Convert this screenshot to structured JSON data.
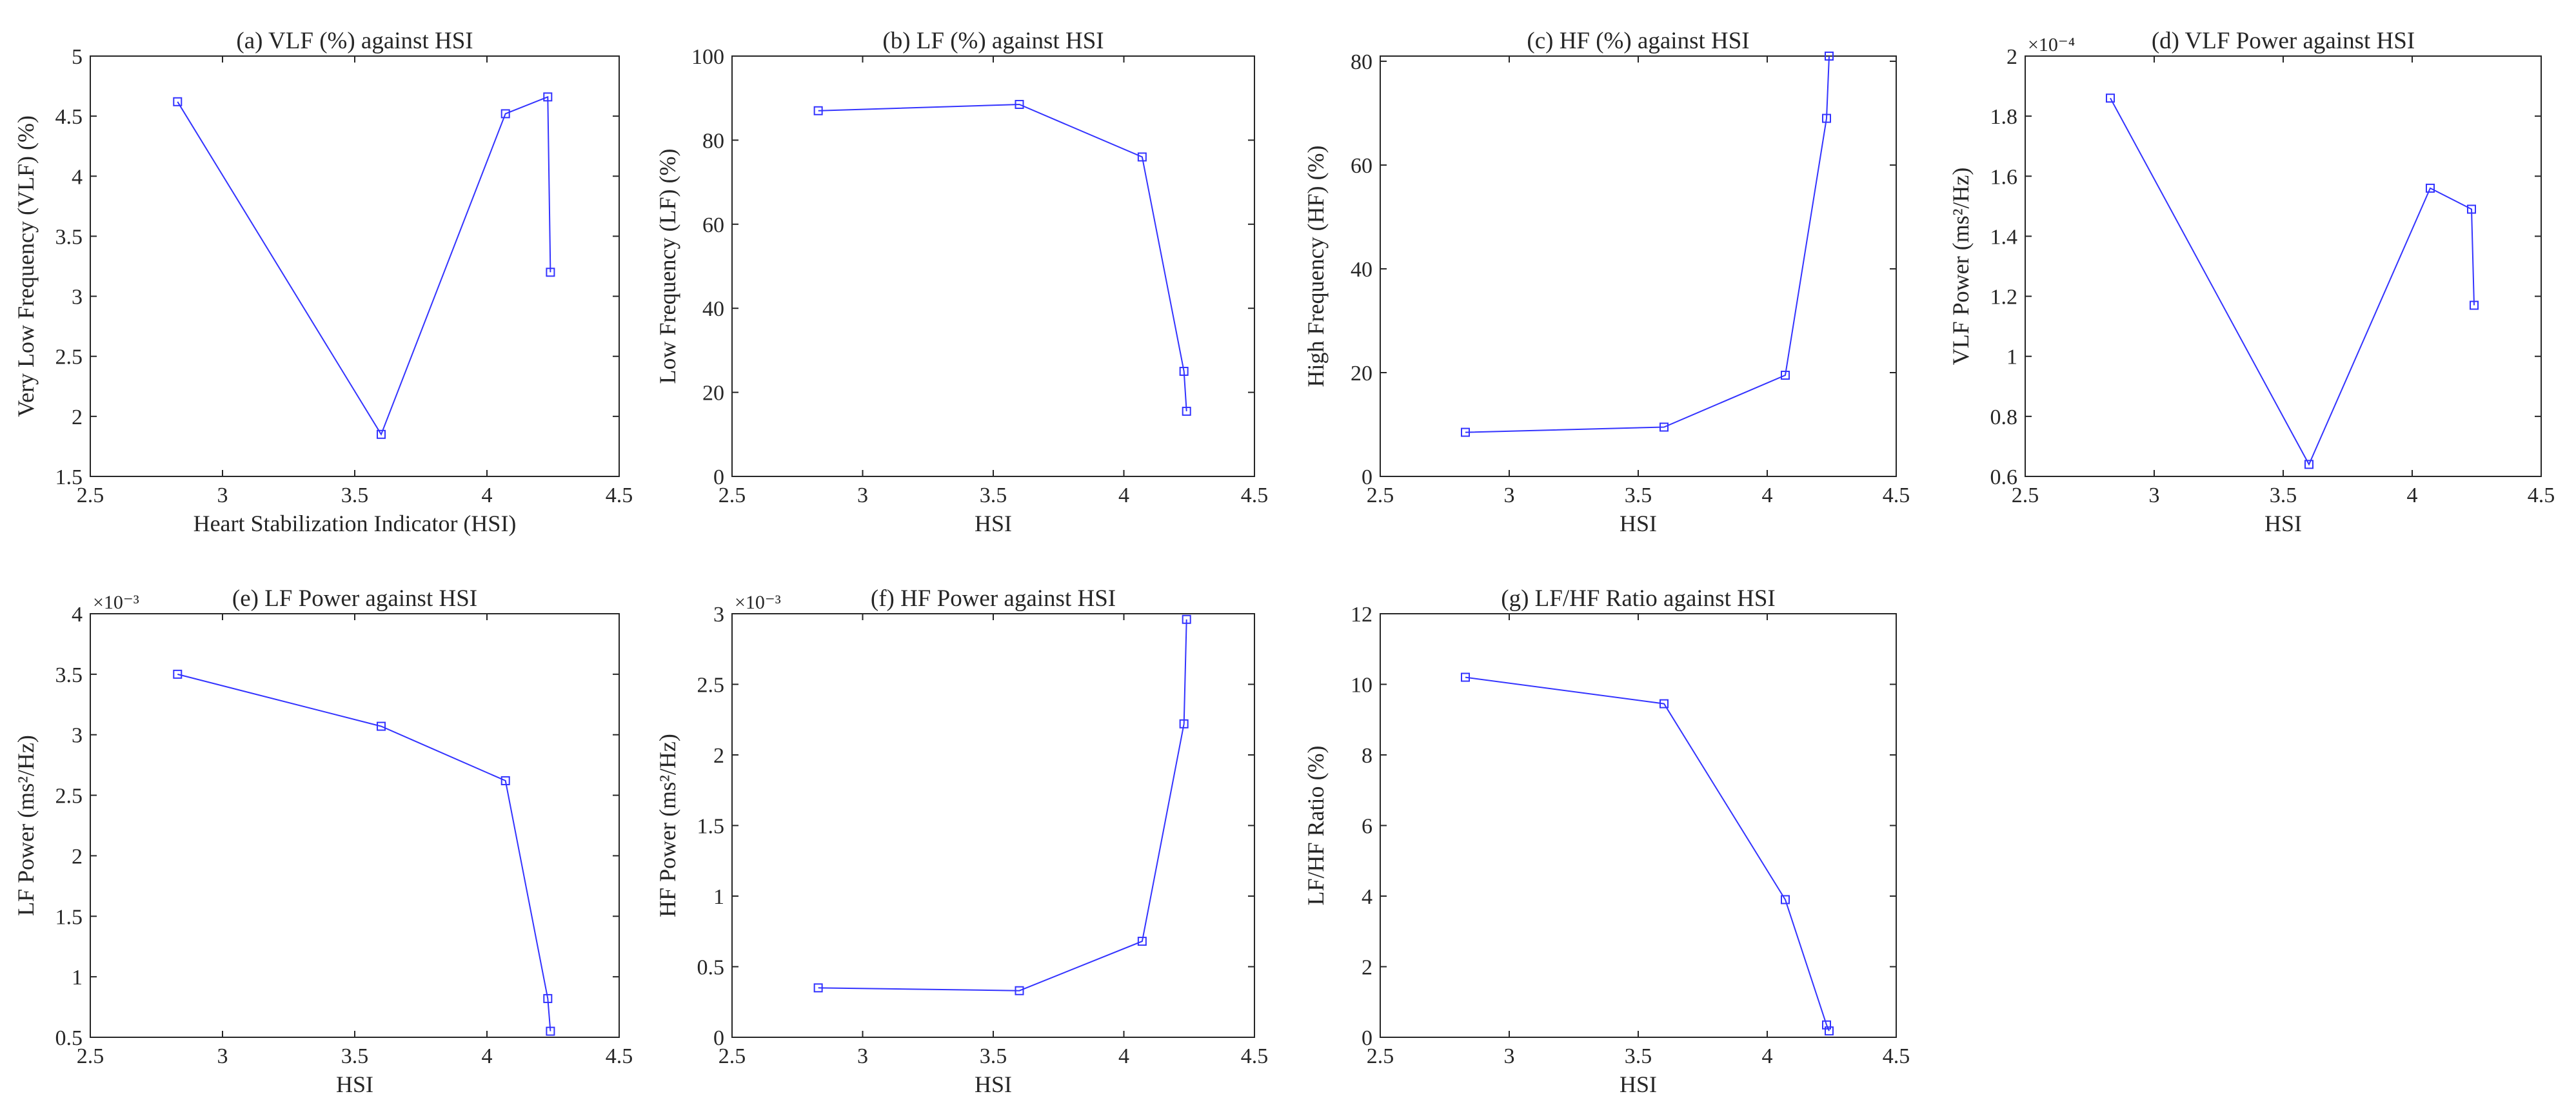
{
  "figure_panels": 7,
  "line_color": "#3333ff",
  "chart_data": [
    {
      "id": "a",
      "type": "line",
      "title": "(a) VLF (%) against HSI",
      "xlabel": "Heart Stabilization Indicator (HSI)",
      "ylabel": "Very Low Frequency (VLF) (%)",
      "xlim": [
        2.5,
        4.5
      ],
      "ylim": [
        1.5,
        5
      ],
      "xticks": [
        2.5,
        3,
        3.5,
        4,
        4.5
      ],
      "xtick_labels": [
        "2.5",
        "3",
        "3.5",
        "4",
        "4.5"
      ],
      "yticks": [
        1.5,
        2,
        2.5,
        3,
        3.5,
        4,
        4.5,
        5
      ],
      "ytick_labels": [
        "1.5",
        "2",
        "2.5",
        "3",
        "3.5",
        "4",
        "4.5",
        "5"
      ],
      "exponent": "",
      "grid": false,
      "x": [
        2.83,
        3.6,
        4.07,
        4.23,
        4.24
      ],
      "y": [
        4.62,
        1.85,
        4.52,
        4.66,
        3.2
      ]
    },
    {
      "id": "b",
      "type": "line",
      "title": "(b) LF (%) against HSI",
      "xlabel": "HSI",
      "ylabel": "Low Frequency (LF) (%)",
      "xlim": [
        2.5,
        4.5
      ],
      "ylim": [
        0,
        100
      ],
      "xticks": [
        2.5,
        3,
        3.5,
        4,
        4.5
      ],
      "xtick_labels": [
        "2.5",
        "3",
        "3.5",
        "4",
        "4.5"
      ],
      "yticks": [
        0,
        20,
        40,
        60,
        80,
        100
      ],
      "ytick_labels": [
        "0",
        "20",
        "40",
        "60",
        "80",
        "100"
      ],
      "exponent": "",
      "grid": false,
      "x": [
        2.83,
        3.6,
        4.07,
        4.23,
        4.24
      ],
      "y": [
        87,
        88.5,
        76,
        25,
        15.5
      ]
    },
    {
      "id": "c",
      "type": "line",
      "title": "(c) HF (%) against HSI",
      "xlabel": "HSI",
      "ylabel": "High Frequency (HF) (%)",
      "xlim": [
        2.5,
        4.5
      ],
      "ylim": [
        0,
        81
      ],
      "xticks": [
        2.5,
        3,
        3.5,
        4,
        4.5
      ],
      "xtick_labels": [
        "2.5",
        "3",
        "3.5",
        "4",
        "4.5"
      ],
      "yticks": [
        0,
        20,
        40,
        60,
        80
      ],
      "ytick_labels": [
        "0",
        "20",
        "40",
        "60",
        "80"
      ],
      "exponent": "",
      "grid": false,
      "x": [
        2.83,
        3.6,
        4.07,
        4.23,
        4.24
      ],
      "y": [
        8.5,
        9.5,
        19.5,
        69,
        81
      ]
    },
    {
      "id": "d",
      "type": "line",
      "title": "(d) VLF Power against HSI",
      "xlabel": "HSI",
      "ylabel": "VLF Power (ms²/Hz)",
      "xlim": [
        2.5,
        4.5
      ],
      "ylim": [
        0.6,
        2
      ],
      "xticks": [
        2.5,
        3,
        3.5,
        4,
        4.5
      ],
      "xtick_labels": [
        "2.5",
        "3",
        "3.5",
        "4",
        "4.5"
      ],
      "yticks": [
        0.6,
        0.8,
        1,
        1.2,
        1.4,
        1.6,
        1.8,
        2
      ],
      "ytick_labels": [
        "0.6",
        "0.8",
        "1",
        "1.2",
        "1.4",
        "1.6",
        "1.8",
        "2"
      ],
      "exponent": "×10⁻⁴",
      "grid": false,
      "x": [
        2.83,
        3.6,
        4.07,
        4.23,
        4.24
      ],
      "y": [
        1.86,
        0.64,
        1.56,
        1.49,
        1.17
      ]
    },
    {
      "id": "e",
      "type": "line",
      "title": "(e) LF Power against HSI",
      "xlabel": "HSI",
      "ylabel": "LF Power (ms²/Hz)",
      "xlim": [
        2.5,
        4.5
      ],
      "ylim": [
        0.5,
        4
      ],
      "xticks": [
        2.5,
        3,
        3.5,
        4,
        4.5
      ],
      "xtick_labels": [
        "2.5",
        "3",
        "3.5",
        "4",
        "4.5"
      ],
      "yticks": [
        0.5,
        1,
        1.5,
        2,
        2.5,
        3,
        3.5,
        4
      ],
      "ytick_labels": [
        "0.5",
        "1",
        "1.5",
        "2",
        "2.5",
        "3",
        "3.5",
        "4"
      ],
      "exponent": "×10⁻³",
      "grid": false,
      "x": [
        2.83,
        3.6,
        4.07,
        4.23,
        4.24
      ],
      "y": [
        3.5,
        3.07,
        2.62,
        0.82,
        0.55
      ]
    },
    {
      "id": "f",
      "type": "line",
      "title": "(f) HF Power against HSI",
      "xlabel": "HSI",
      "ylabel": "HF Power (ms²/Hz)",
      "xlim": [
        2.5,
        4.5
      ],
      "ylim": [
        0,
        3
      ],
      "xticks": [
        2.5,
        3,
        3.5,
        4,
        4.5
      ],
      "xtick_labels": [
        "2.5",
        "3",
        "3.5",
        "4",
        "4.5"
      ],
      "yticks": [
        0,
        0.5,
        1,
        1.5,
        2,
        2.5,
        3
      ],
      "ytick_labels": [
        "0",
        "0.5",
        "1",
        "1.5",
        "2",
        "2.5",
        "3"
      ],
      "exponent": "×10⁻³",
      "grid": false,
      "x": [
        2.83,
        3.6,
        4.07,
        4.23,
        4.24
      ],
      "y": [
        0.35,
        0.33,
        0.68,
        2.22,
        2.96
      ]
    },
    {
      "id": "g",
      "type": "line",
      "title": "(g) LF/HF Ratio against HSI",
      "xlabel": "HSI",
      "ylabel": "LF/HF Ratio (%)",
      "xlim": [
        2.5,
        4.5
      ],
      "ylim": [
        0,
        12
      ],
      "xticks": [
        2.5,
        3,
        3.5,
        4,
        4.5
      ],
      "xtick_labels": [
        "2.5",
        "3",
        "3.5",
        "4",
        "4.5"
      ],
      "yticks": [
        0,
        2,
        4,
        6,
        8,
        10,
        12
      ],
      "ytick_labels": [
        "0",
        "2",
        "4",
        "6",
        "8",
        "10",
        "12"
      ],
      "exponent": "",
      "grid": false,
      "x": [
        2.83,
        3.6,
        4.07,
        4.23,
        4.24
      ],
      "y": [
        10.2,
        9.45,
        3.9,
        0.35,
        0.18
      ]
    }
  ]
}
